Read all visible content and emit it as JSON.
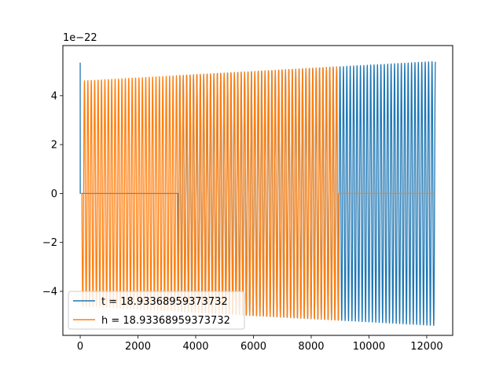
{
  "chart_data": {
    "type": "line",
    "title": "",
    "xlabel": "",
    "ylabel": "",
    "y_offset_label": "1e−22",
    "xlim": [
      -600,
      12900
    ],
    "ylim": [
      -5.8,
      6.05
    ],
    "x_ticks": [
      0,
      2000,
      4000,
      6000,
      8000,
      10000,
      12000
    ],
    "x_tick_labels": [
      "0",
      "2000",
      "4000",
      "6000",
      "8000",
      "10000",
      "12000"
    ],
    "y_ticks": [
      -4,
      -2,
      0,
      2,
      4
    ],
    "y_tick_labels": [
      "−4",
      "−2",
      "0",
      "2",
      "4"
    ],
    "grid": false,
    "legend_position": "lower-left",
    "series": [
      {
        "name": "t = 18.93368959373732",
        "color": "#1f77b4",
        "wave": {
          "x_start": 0,
          "x_end": 12300,
          "period": 118,
          "amp_start": 4.6,
          "amp_end": 5.4,
          "spike_start": 5.35,
          "active": [
            [
              3400,
              12300
            ]
          ]
        }
      },
      {
        "name": "h = 18.93368959373732",
        "color": "#ff7f0e",
        "wave": {
          "x_start": 0,
          "x_end": 12300,
          "period": 118,
          "amp_start": 4.6,
          "amp_end": 5.4,
          "active": [
            [
              60,
              8950
            ]
          ]
        }
      }
    ]
  }
}
